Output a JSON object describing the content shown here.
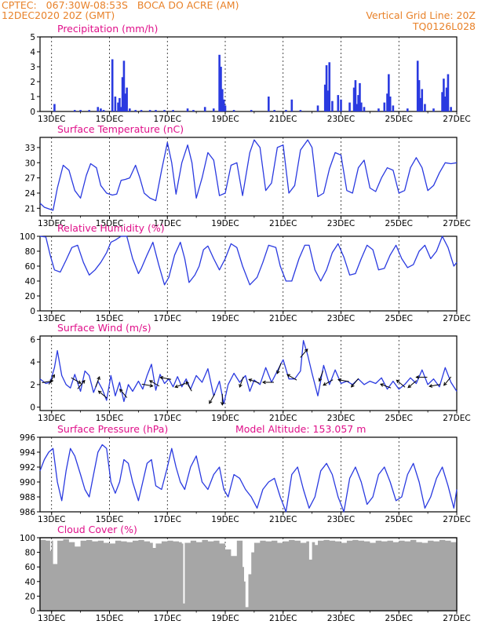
{
  "header": {
    "line1": "CPTEC:   067:30W-08:53S   BOCA DO ACRE (AM)",
    "line2": "12DEC2020 20Z (GMT)",
    "grid_note": "Vertical Grid Line: 20Z",
    "code": "TQ0126L028"
  },
  "colors": {
    "header": "#e8822a",
    "title": "#e0108a",
    "line": "#2a3ae0",
    "bar": "#2a3ae0",
    "cloud": "#a6a6a6"
  },
  "x_axis": {
    "range_days": [
      12.6,
      27.0
    ],
    "ticks": [
      13,
      15,
      17,
      19,
      21,
      23,
      25,
      27
    ],
    "tick_labels": [
      "13DEC",
      "15DEC",
      "17DEC",
      "19DEC",
      "21DEC",
      "23DEC",
      "25DEC",
      "27DEC"
    ]
  },
  "chart_data": [
    {
      "type": "bar",
      "title": "Precipitation (mm/h)",
      "ylim": [
        0,
        5
      ],
      "yticks": [
        0,
        1,
        2,
        3,
        4,
        5
      ],
      "x": [
        13.1,
        13.8,
        14.0,
        14.3,
        14.6,
        14.7,
        14.8,
        15.1,
        15.2,
        15.3,
        15.35,
        15.4,
        15.45,
        15.5,
        15.55,
        15.6,
        15.7,
        15.9,
        16.1,
        16.4,
        16.6,
        16.9,
        17.2,
        17.7,
        17.9,
        18.3,
        18.6,
        18.8,
        18.85,
        18.9,
        18.95,
        19.0,
        19.3,
        19.9,
        20.5,
        20.7,
        21.1,
        21.3,
        21.6,
        22.2,
        22.45,
        22.5,
        22.55,
        22.6,
        22.7,
        22.9,
        23.0,
        23.3,
        23.45,
        23.5,
        23.55,
        23.6,
        23.65,
        23.7,
        23.8,
        24.3,
        24.5,
        24.6,
        24.65,
        24.7,
        24.8,
        25.3,
        25.65,
        25.7,
        25.75,
        25.8,
        25.9,
        26.2,
        26.5,
        26.55,
        26.6,
        26.65,
        26.7,
        26.8
      ],
      "values": [
        0.5,
        0.1,
        0.1,
        0.1,
        0.3,
        0.2,
        0.1,
        3.5,
        1.0,
        0.6,
        0.9,
        0.3,
        2.3,
        3.4,
        1.2,
        1.6,
        0.2,
        0.1,
        0.1,
        0.1,
        0.1,
        0.1,
        0.1,
        0.2,
        0.1,
        0.3,
        0.2,
        3.8,
        3.0,
        1.5,
        0.8,
        0.4,
        0.1,
        0.1,
        1.0,
        0.1,
        0.1,
        0.8,
        0.1,
        0.4,
        1.8,
        3.1,
        1.4,
        3.3,
        0.7,
        1.1,
        0.8,
        0.6,
        1.6,
        2.1,
        0.5,
        1.1,
        1.9,
        0.6,
        0.3,
        0.2,
        0.6,
        1.2,
        2.5,
        1.0,
        0.4,
        0.2,
        3.4,
        2.1,
        0.9,
        1.5,
        0.5,
        0.2,
        1.3,
        2.2,
        1.0,
        1.6,
        2.5,
        0.3
      ]
    },
    {
      "type": "line",
      "title": "Surface Temperature (nC)",
      "ylim": [
        19.5,
        35
      ],
      "yticks": [
        21,
        24,
        27,
        30,
        33
      ],
      "x": [
        12.6,
        12.75,
        12.9,
        13.05,
        13.2,
        13.4,
        13.6,
        13.8,
        14.0,
        14.2,
        14.35,
        14.55,
        14.7,
        14.9,
        15.1,
        15.25,
        15.4,
        15.55,
        15.7,
        15.9,
        16.05,
        16.2,
        16.4,
        16.6,
        16.8,
        17.0,
        17.15,
        17.3,
        17.5,
        17.7,
        17.85,
        18.0,
        18.2,
        18.4,
        18.6,
        18.8,
        19.0,
        19.2,
        19.4,
        19.6,
        19.85,
        20.0,
        20.2,
        20.4,
        20.6,
        20.8,
        21.0,
        21.2,
        21.4,
        21.6,
        21.85,
        22.0,
        22.2,
        22.4,
        22.6,
        22.8,
        23.0,
        23.2,
        23.4,
        23.6,
        23.8,
        24.0,
        24.2,
        24.4,
        24.6,
        24.8,
        25.0,
        25.2,
        25.4,
        25.6,
        25.8,
        26.0,
        26.2,
        26.4,
        26.6,
        26.8,
        27.0
      ],
      "values": [
        22.0,
        21.2,
        20.9,
        20.6,
        25.0,
        29.5,
        28.5,
        24.5,
        23.0,
        27.5,
        29.8,
        29.0,
        25.5,
        24.0,
        23.6,
        23.8,
        26.5,
        26.7,
        27.0,
        29.5,
        27.0,
        24.0,
        23.0,
        22.5,
        28.5,
        34.0,
        30.0,
        23.8,
        30.0,
        33.5,
        30.0,
        23.0,
        27.0,
        32.0,
        30.5,
        23.5,
        24.0,
        29.5,
        30.0,
        23.5,
        32.0,
        34.5,
        33.0,
        24.5,
        26.0,
        33.0,
        33.5,
        24.0,
        25.5,
        32.5,
        34.5,
        33.0,
        23.3,
        24.0,
        28.8,
        32.0,
        31.5,
        24.5,
        24.0,
        29.0,
        30.5,
        25.0,
        24.3,
        27.0,
        29.0,
        28.5,
        24.0,
        24.5,
        29.0,
        31.0,
        29.0,
        24.5,
        25.5,
        28.0,
        30.0,
        29.8,
        30.0
      ]
    },
    {
      "type": "line",
      "title": "Relative Humidity (%)",
      "ylim": [
        0,
        100
      ],
      "yticks": [
        0,
        20,
        40,
        60,
        80,
        100
      ],
      "x": [
        12.6,
        12.8,
        12.95,
        13.1,
        13.3,
        13.5,
        13.7,
        13.9,
        14.1,
        14.3,
        14.5,
        14.7,
        14.9,
        15.05,
        15.2,
        15.4,
        15.6,
        15.8,
        16.0,
        16.1,
        16.3,
        16.5,
        16.7,
        16.9,
        17.05,
        17.25,
        17.45,
        17.6,
        17.75,
        17.95,
        18.1,
        18.25,
        18.4,
        18.6,
        18.8,
        19.0,
        19.2,
        19.4,
        19.6,
        19.85,
        20.1,
        20.3,
        20.5,
        20.75,
        20.9,
        21.1,
        21.3,
        21.55,
        21.75,
        21.9,
        22.1,
        22.3,
        22.5,
        22.7,
        22.9,
        23.1,
        23.3,
        23.5,
        23.7,
        23.9,
        24.1,
        24.3,
        24.5,
        24.7,
        24.9,
        25.1,
        25.3,
        25.5,
        25.7,
        25.9,
        26.1,
        26.3,
        26.5,
        26.7,
        26.9,
        27.0
      ],
      "values": [
        100,
        99,
        75,
        55,
        52,
        68,
        85,
        88,
        65,
        48,
        55,
        65,
        78,
        92,
        95,
        100,
        100,
        70,
        50,
        57,
        75,
        92,
        62,
        35,
        45,
        75,
        92,
        70,
        38,
        48,
        60,
        82,
        87,
        70,
        55,
        70,
        90,
        85,
        60,
        35,
        45,
        65,
        88,
        85,
        60,
        40,
        40,
        70,
        88,
        88,
        55,
        40,
        55,
        78,
        90,
        72,
        48,
        50,
        70,
        88,
        82,
        55,
        57,
        75,
        88,
        70,
        58,
        62,
        80,
        88,
        70,
        80,
        100,
        85,
        60,
        65
      ]
    },
    {
      "type": "line",
      "title": "Surface Wind (m/s)",
      "ylim": [
        -0.3,
        6.3
      ],
      "yticks": [
        0,
        2,
        4,
        6
      ],
      "x": [
        12.6,
        12.8,
        12.95,
        13.1,
        13.2,
        13.35,
        13.5,
        13.65,
        13.8,
        14.0,
        14.15,
        14.3,
        14.45,
        14.6,
        14.75,
        14.9,
        15.05,
        15.2,
        15.35,
        15.5,
        15.65,
        15.8,
        16.0,
        16.15,
        16.3,
        16.45,
        16.6,
        16.75,
        16.9,
        17.05,
        17.2,
        17.35,
        17.5,
        17.65,
        17.8,
        18.0,
        18.2,
        18.4,
        18.6,
        18.8,
        18.95,
        19.1,
        19.3,
        19.5,
        19.7,
        19.85,
        20.0,
        20.2,
        20.4,
        20.6,
        20.8,
        21.0,
        21.2,
        21.4,
        21.6,
        21.7,
        21.85,
        22.0,
        22.2,
        22.4,
        22.6,
        22.8,
        23.0,
        23.2,
        23.4,
        23.6,
        23.8,
        24.0,
        24.2,
        24.4,
        24.6,
        24.8,
        25.0,
        25.2,
        25.4,
        25.6,
        25.8,
        26.0,
        26.2,
        26.4,
        26.6,
        26.8,
        27.0
      ],
      "values": [
        2.5,
        2.1,
        2.2,
        3.5,
        5.0,
        2.8,
        2.0,
        1.7,
        2.9,
        1.4,
        3.2,
        2.8,
        1.3,
        2.3,
        1.6,
        0.6,
        2.8,
        1.0,
        2.2,
        0.5,
        2.0,
        1.4,
        2.3,
        1.6,
        2.8,
        3.8,
        1.5,
        2.9,
        2.1,
        2.5,
        1.8,
        2.7,
        1.8,
        2.5,
        1.6,
        2.8,
        2.2,
        3.4,
        1.0,
        2.3,
        0.3,
        2.0,
        3.0,
        2.2,
        2.8,
        1.4,
        2.4,
        2.0,
        3.5,
        2.2,
        3.2,
        4.2,
        2.5,
        2.5,
        3.2,
        5.9,
        4.6,
        3.0,
        1.0,
        3.7,
        2.0,
        3.3,
        2.1,
        2.3,
        2.0,
        2.5,
        2.0,
        2.3,
        2.1,
        2.6,
        1.6,
        2.3,
        1.6,
        2.0,
        2.6,
        2.1,
        3.3,
        2.0,
        2.5,
        1.8,
        3.5,
        2.2,
        1.4
      ],
      "direction_arrows": {
        "x": [
          12.75,
          12.95,
          13.75,
          13.95,
          14.55,
          14.85,
          15.55,
          16.2,
          16.65,
          17.05,
          17.55,
          17.8,
          18.6,
          18.9,
          19.6,
          20.1,
          20.6,
          20.9,
          21.4,
          21.65,
          22.35,
          22.65,
          23.2,
          23.55,
          24.65,
          25.15,
          25.55,
          25.9,
          26.35,
          26.75
        ],
        "dir_to_deg": [
          80,
          30,
          120,
          40,
          20,
          310,
          320,
          100,
          300,
          280,
          250,
          330,
          210,
          180,
          200,
          290,
          270,
          200,
          300,
          40,
          200,
          240,
          280,
          220,
          290,
          310,
          230,
          270,
          260,
          220
        ]
      }
    },
    {
      "type": "line",
      "title": "Surface Pressure (hPa)",
      "annotation": "Model Altitude: 153.057  m",
      "ylim": [
        986,
        996
      ],
      "yticks": [
        986,
        988,
        990,
        992,
        994,
        996
      ],
      "x": [
        12.6,
        12.75,
        12.9,
        13.05,
        13.2,
        13.35,
        13.5,
        13.65,
        13.8,
        14.0,
        14.15,
        14.3,
        14.45,
        14.6,
        14.75,
        14.9,
        15.05,
        15.2,
        15.35,
        15.5,
        15.65,
        15.8,
        16.0,
        16.15,
        16.3,
        16.45,
        16.6,
        16.8,
        17.0,
        17.15,
        17.3,
        17.45,
        17.6,
        17.8,
        18.0,
        18.2,
        18.4,
        18.6,
        18.8,
        18.95,
        19.1,
        19.3,
        19.5,
        19.7,
        19.9,
        20.1,
        20.3,
        20.5,
        20.7,
        20.9,
        21.1,
        21.3,
        21.5,
        21.7,
        21.9,
        22.1,
        22.3,
        22.5,
        22.7,
        22.9,
        23.1,
        23.3,
        23.5,
        23.7,
        23.9,
        24.1,
        24.3,
        24.5,
        24.7,
        24.9,
        25.1,
        25.3,
        25.5,
        25.7,
        25.9,
        26.1,
        26.3,
        26.5,
        26.7,
        26.9,
        27.0
      ],
      "values": [
        991.5,
        993.0,
        994.0,
        994.5,
        990.0,
        987.5,
        991.5,
        994.5,
        993.5,
        991.0,
        989.0,
        988.0,
        991.0,
        994.0,
        995.0,
        994.5,
        990.0,
        988.5,
        990.0,
        993.0,
        992.5,
        990.0,
        987.5,
        990.0,
        992.5,
        993.0,
        989.5,
        989.0,
        992.0,
        994.5,
        992.0,
        990.0,
        989.0,
        992.0,
        993.5,
        990.0,
        989.0,
        991.0,
        992.0,
        989.0,
        988.0,
        991.0,
        990.5,
        989.0,
        988.0,
        986.5,
        989.0,
        990.0,
        990.5,
        988.0,
        986.0,
        991.0,
        992.0,
        989.0,
        986.5,
        988.0,
        991.5,
        992.5,
        991.0,
        988.0,
        986.0,
        990.5,
        992.0,
        990.0,
        987.0,
        988.0,
        991.0,
        992.0,
        990.0,
        987.5,
        988.0,
        991.0,
        992.5,
        990.0,
        986.5,
        988.0,
        990.5,
        992.0,
        989.5,
        986.5,
        989.0
      ]
    },
    {
      "type": "area",
      "title": "Cloud Cover (%)",
      "ylim": [
        0,
        100
      ],
      "yticks": [
        0,
        20,
        40,
        60,
        80,
        100
      ],
      "x": [
        12.6,
        12.8,
        12.95,
        13.0,
        13.05,
        13.2,
        13.4,
        13.6,
        13.8,
        14.0,
        14.2,
        14.4,
        14.6,
        14.8,
        15.0,
        15.2,
        15.4,
        15.6,
        15.8,
        16.0,
        16.2,
        16.4,
        16.5,
        16.6,
        16.8,
        17.0,
        17.2,
        17.4,
        17.5,
        17.55,
        17.6,
        17.8,
        18.0,
        18.2,
        18.4,
        18.6,
        18.8,
        19.0,
        19.2,
        19.4,
        19.6,
        19.65,
        19.7,
        19.8,
        19.9,
        20.0,
        20.2,
        20.4,
        20.6,
        20.8,
        21.0,
        21.2,
        21.4,
        21.6,
        21.8,
        21.9,
        22.0,
        22.1,
        22.2,
        22.4,
        22.6,
        22.8,
        23.0,
        23.2,
        23.4,
        23.6,
        23.8,
        24.0,
        24.2,
        24.4,
        24.6,
        24.8,
        25.0,
        25.2,
        25.4,
        25.6,
        25.8,
        26.0,
        26.2,
        26.4,
        26.6,
        26.8,
        27.0
      ],
      "values": [
        97,
        96,
        82,
        96,
        64,
        96,
        98,
        94,
        88,
        96,
        97,
        95,
        96,
        93,
        92,
        96,
        95,
        94,
        96,
        97,
        95,
        93,
        86,
        92,
        95,
        96,
        95,
        94,
        92,
        10,
        93,
        96,
        94,
        97,
        95,
        96,
        92,
        84,
        75,
        96,
        60,
        40,
        5,
        50,
        80,
        93,
        96,
        95,
        96,
        93,
        95,
        97,
        96,
        93,
        95,
        70,
        94,
        90,
        96,
        97,
        96,
        95,
        93,
        96,
        97,
        96,
        95,
        93,
        96,
        95,
        96,
        94,
        96,
        95,
        97,
        94,
        93,
        96,
        95,
        97,
        96,
        94,
        95
      ]
    }
  ]
}
